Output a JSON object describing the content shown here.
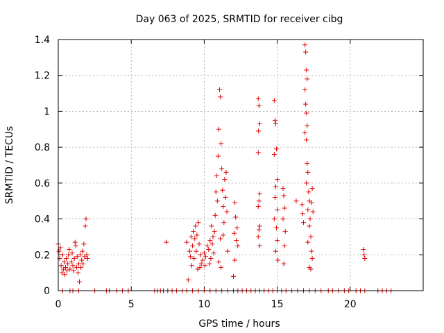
{
  "chart_data": {
    "type": "scatter",
    "title": "Day 063 of 2025, SRMTID for receiver cibg",
    "xlabel": "GPS time / hours",
    "ylabel": "SRMTID / TECUs",
    "xlim": [
      0,
      25
    ],
    "ylim": [
      0,
      1.4
    ],
    "xticks": [
      0,
      5,
      10,
      15,
      20
    ],
    "xtick_labels": [
      "0",
      "5",
      "10",
      "15",
      "20"
    ],
    "yticks": [
      0,
      0.2,
      0.4,
      0.6,
      0.8,
      1.0,
      1.2,
      1.4
    ],
    "ytick_labels": [
      "0",
      "0.2",
      "0.4",
      "0.6",
      "0.8",
      "1",
      "1.2",
      "1.4"
    ],
    "grid": true,
    "marker": "plus",
    "color": "#e00000",
    "series": [
      {
        "name": "SRMTID",
        "points": [
          [
            0.0,
            0.26
          ],
          [
            0.05,
            0.22
          ],
          [
            0.1,
            0.18
          ],
          [
            0.15,
            0.24
          ],
          [
            0.2,
            0.14
          ],
          [
            0.25,
            0.1
          ],
          [
            0.3,
            0.2
          ],
          [
            0.35,
            0.12
          ],
          [
            0.4,
            0.16
          ],
          [
            0.45,
            0.09
          ],
          [
            0.5,
            0.13
          ],
          [
            0.55,
            0.18
          ],
          [
            0.6,
            0.11
          ],
          [
            0.65,
            0.15
          ],
          [
            0.7,
            0.2
          ],
          [
            0.75,
            0.23
          ],
          [
            0.8,
            0.12
          ],
          [
            0.9,
            0.16
          ],
          [
            0.95,
            0.21
          ],
          [
            1.0,
            0.14
          ],
          [
            1.05,
            0.11
          ],
          [
            1.1,
            0.18
          ],
          [
            1.15,
            0.27
          ],
          [
            1.2,
            0.25
          ],
          [
            1.25,
            0.13
          ],
          [
            1.3,
            0.19
          ],
          [
            1.35,
            0.1
          ],
          [
            1.4,
            0.15
          ],
          [
            1.45,
            0.05
          ],
          [
            1.5,
            0.2
          ],
          [
            1.55,
            0.13
          ],
          [
            1.6,
            0.17
          ],
          [
            1.65,
            0.22
          ],
          [
            1.7,
            0.15
          ],
          [
            1.75,
            0.26
          ],
          [
            1.8,
            0.19
          ],
          [
            1.85,
            0.36
          ],
          [
            1.9,
            0.4
          ],
          [
            1.95,
            0.2
          ],
          [
            2.0,
            0.18
          ],
          [
            7.4,
            0.27
          ],
          [
            8.8,
            0.27
          ],
          [
            8.9,
            0.06
          ],
          [
            9.0,
            0.22
          ],
          [
            9.05,
            0.19
          ],
          [
            9.1,
            0.3
          ],
          [
            9.15,
            0.14
          ],
          [
            9.2,
            0.25
          ],
          [
            9.25,
            0.33
          ],
          [
            9.3,
            0.18
          ],
          [
            9.35,
            0.29
          ],
          [
            9.4,
            0.36
          ],
          [
            9.45,
            0.22
          ],
          [
            9.5,
            0.31
          ],
          [
            9.55,
            0.12
          ],
          [
            9.6,
            0.38
          ],
          [
            9.65,
            0.26
          ],
          [
            9.7,
            0.13
          ],
          [
            9.75,
            0.2
          ],
          [
            9.8,
            0.15
          ],
          [
            9.9,
            0.17
          ],
          [
            10.0,
            0.21
          ],
          [
            10.05,
            0.14
          ],
          [
            10.1,
            0.19
          ],
          [
            10.2,
            0.25
          ],
          [
            10.3,
            0.23
          ],
          [
            10.35,
            0.15
          ],
          [
            10.4,
            0.28
          ],
          [
            10.45,
            0.18
          ],
          [
            10.5,
            0.36
          ],
          [
            10.55,
            0.26
          ],
          [
            10.6,
            0.3
          ],
          [
            10.65,
            0.21
          ],
          [
            10.7,
            0.33
          ],
          [
            10.75,
            0.42
          ],
          [
            10.8,
            0.55
          ],
          [
            10.85,
            0.64
          ],
          [
            10.9,
            0.5
          ],
          [
            10.95,
            0.75
          ],
          [
            11.0,
            0.9
          ],
          [
            11.05,
            1.12
          ],
          [
            11.1,
            1.08
          ],
          [
            11.15,
            0.82
          ],
          [
            11.2,
            0.68
          ],
          [
            11.25,
            0.56
          ],
          [
            11.3,
            0.47
          ],
          [
            11.35,
            0.38
          ],
          [
            11.1,
            0.29
          ],
          [
            11.4,
            0.62
          ],
          [
            11.45,
            0.52
          ],
          [
            11.5,
            0.66
          ],
          [
            11.55,
            0.44
          ],
          [
            11.6,
            0.22
          ],
          [
            11.3,
            0.31
          ],
          [
            11.0,
            0.16
          ],
          [
            11.15,
            0.13
          ],
          [
            12.0,
            0.08
          ],
          [
            12.05,
            0.32
          ],
          [
            12.1,
            0.49
          ],
          [
            12.15,
            0.41
          ],
          [
            12.2,
            0.28
          ],
          [
            12.25,
            0.35
          ],
          [
            12.1,
            0.17
          ],
          [
            12.3,
            0.25
          ],
          [
            13.7,
            1.07
          ],
          [
            13.75,
            1.03
          ],
          [
            13.8,
            0.93
          ],
          [
            13.72,
            0.89
          ],
          [
            13.7,
            0.77
          ],
          [
            13.8,
            0.54
          ],
          [
            13.75,
            0.5
          ],
          [
            13.7,
            0.47
          ],
          [
            13.8,
            0.36
          ],
          [
            13.75,
            0.34
          ],
          [
            13.7,
            0.3
          ],
          [
            13.8,
            0.25
          ],
          [
            14.8,
            1.06
          ],
          [
            14.85,
            0.95
          ],
          [
            14.9,
            0.93
          ],
          [
            14.8,
            0.76
          ],
          [
            14.95,
            0.79
          ],
          [
            15.0,
            0.62
          ],
          [
            14.9,
            0.58
          ],
          [
            14.85,
            0.52
          ],
          [
            15.0,
            0.45
          ],
          [
            14.8,
            0.4
          ],
          [
            14.95,
            0.35
          ],
          [
            15.0,
            0.28
          ],
          [
            14.9,
            0.22
          ],
          [
            15.05,
            0.17
          ],
          [
            15.4,
            0.57
          ],
          [
            15.45,
            0.53
          ],
          [
            15.5,
            0.46
          ],
          [
            15.4,
            0.4
          ],
          [
            15.55,
            0.33
          ],
          [
            15.5,
            0.25
          ],
          [
            15.45,
            0.15
          ],
          [
            16.3,
            0.5
          ],
          [
            16.7,
            0.48
          ],
          [
            16.75,
            0.43
          ],
          [
            16.8,
            0.38
          ],
          [
            16.9,
            1.37
          ],
          [
            16.95,
            1.33
          ],
          [
            17.0,
            1.23
          ],
          [
            17.05,
            1.18
          ],
          [
            16.9,
            1.12
          ],
          [
            16.95,
            1.04
          ],
          [
            17.0,
            0.99
          ],
          [
            17.05,
            0.92
          ],
          [
            16.9,
            0.88
          ],
          [
            17.0,
            0.84
          ],
          [
            17.05,
            0.71
          ],
          [
            17.1,
            0.66
          ],
          [
            17.0,
            0.6
          ],
          [
            17.15,
            0.55
          ],
          [
            17.2,
            0.5
          ],
          [
            17.1,
            0.45
          ],
          [
            17.25,
            0.4
          ],
          [
            17.2,
            0.36
          ],
          [
            17.3,
            0.3
          ],
          [
            17.1,
            0.27
          ],
          [
            17.35,
            0.22
          ],
          [
            17.4,
            0.18
          ],
          [
            17.2,
            0.13
          ],
          [
            17.4,
            0.57
          ],
          [
            17.35,
            0.49
          ],
          [
            17.45,
            0.44
          ],
          [
            17.3,
            0.12
          ],
          [
            20.9,
            0.23
          ],
          [
            20.95,
            0.2
          ],
          [
            21.0,
            0.18
          ],
          [
            0.3,
            0
          ],
          [
            0.8,
            0
          ],
          [
            1.0,
            0
          ],
          [
            1.4,
            0
          ],
          [
            2.5,
            0
          ],
          [
            3.3,
            0
          ],
          [
            3.5,
            0
          ],
          [
            4.0,
            0
          ],
          [
            4.4,
            0
          ],
          [
            4.8,
            0
          ],
          [
            6.6,
            0
          ],
          [
            6.8,
            0
          ],
          [
            7.0,
            0
          ],
          [
            7.2,
            0
          ],
          [
            7.5,
            0
          ],
          [
            7.8,
            0
          ],
          [
            8.1,
            0
          ],
          [
            8.5,
            0
          ],
          [
            8.8,
            0
          ],
          [
            9.2,
            0
          ],
          [
            9.6,
            0
          ],
          [
            10.0,
            0
          ],
          [
            10.4,
            0
          ],
          [
            10.8,
            0
          ],
          [
            11.2,
            0
          ],
          [
            11.6,
            0
          ],
          [
            12.0,
            0
          ],
          [
            12.3,
            0
          ],
          [
            12.6,
            0
          ],
          [
            12.9,
            0
          ],
          [
            13.2,
            0
          ],
          [
            13.5,
            0
          ],
          [
            13.8,
            0
          ],
          [
            14.1,
            0
          ],
          [
            14.4,
            0
          ],
          [
            14.7,
            0
          ],
          [
            15.0,
            0
          ],
          [
            15.3,
            0
          ],
          [
            15.6,
            0
          ],
          [
            16.0,
            0
          ],
          [
            16.4,
            0
          ],
          [
            16.8,
            0
          ],
          [
            17.2,
            0
          ],
          [
            17.6,
            0
          ],
          [
            18.0,
            0
          ],
          [
            18.5,
            0
          ],
          [
            18.8,
            0
          ],
          [
            19.2,
            0
          ],
          [
            19.6,
            0
          ],
          [
            19.9,
            0
          ],
          [
            20.4,
            0
          ],
          [
            20.7,
            0
          ],
          [
            21.0,
            0
          ],
          [
            21.9,
            0
          ],
          [
            22.2,
            0
          ],
          [
            22.5,
            0
          ],
          [
            22.8,
            0
          ]
        ]
      }
    ]
  }
}
